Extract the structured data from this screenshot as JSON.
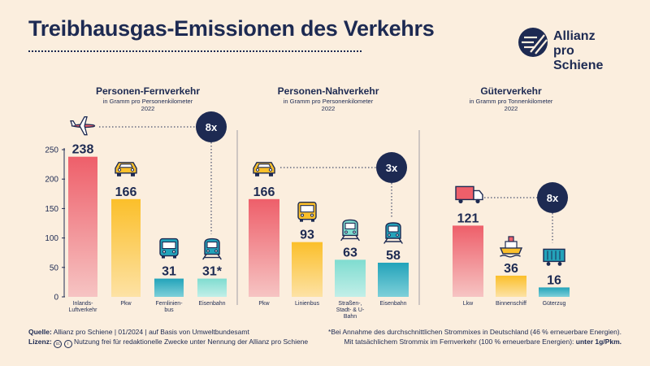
{
  "header": {
    "title": "Treibhausgas-Emissionen des Verkehrs",
    "logo_line1": "Allianz",
    "logo_line2": "pro Schiene"
  },
  "colors": {
    "background": "#fbeede",
    "navy": "#1d2a52",
    "red_top": "#ee5f6a",
    "red_bottom": "#f6c4c3",
    "yellow_top": "#fbbf2a",
    "yellow_bottom": "#fde2a5",
    "teal_top": "#23a3ba",
    "teal_bottom": "#7ed0d9",
    "mint_top": "#7fdcd0",
    "mint_bottom": "#c2efe8"
  },
  "chart_data": {
    "type": "bar",
    "ylim": [
      0,
      250
    ],
    "yticks": [
      "0",
      "50",
      "100",
      "150",
      "200",
      "250"
    ],
    "grid": false,
    "panels": [
      {
        "title": "Personen-Fernverkehr",
        "unit": "in Gramm pro Personenkilometer",
        "year": "2022",
        "factor_label": "8x",
        "bars": [
          {
            "category": "Inlands-Luftverkehr",
            "value": 238,
            "label": "238",
            "color": "red",
            "icon": "airplane-icon"
          },
          {
            "category": "Pkw",
            "value": 166,
            "label": "166",
            "color": "yellow",
            "icon": "car-icon"
          },
          {
            "category": "Fernlinien-bus",
            "value": 31,
            "label": "31",
            "color": "teal",
            "icon": "coach-bus-icon"
          },
          {
            "category": "Eisenbahn",
            "value": 31,
            "label": "31*",
            "color": "mint",
            "icon": "train-icon"
          }
        ]
      },
      {
        "title": "Personen-Nahverkehr",
        "unit": "in Gramm pro Personenkilometer",
        "year": "2022",
        "factor_label": "3x",
        "bars": [
          {
            "category": "Pkw",
            "value": 166,
            "label": "166",
            "color": "red",
            "icon": "car-icon"
          },
          {
            "category": "Linienbus",
            "value": 93,
            "label": "93",
            "color": "yellow",
            "icon": "bus-icon"
          },
          {
            "category": "Straßen-, Stadt- & U-Bahn",
            "value": 63,
            "label": "63",
            "color": "mint",
            "icon": "tram-icon"
          },
          {
            "category": "Eisenbahn",
            "value": 58,
            "label": "58",
            "color": "teal",
            "icon": "train-icon"
          }
        ]
      },
      {
        "title": "Güterverkehr",
        "unit": "in Gramm pro Tonnenkilometer",
        "year": "2022",
        "factor_label": "8x",
        "bars": [
          {
            "category": "Lkw",
            "value": 121,
            "label": "121",
            "color": "red",
            "icon": "truck-icon"
          },
          {
            "category": "Binnenschiff",
            "value": 36,
            "label": "36",
            "color": "yellow",
            "icon": "ship-icon"
          },
          {
            "category": "Güterzug",
            "value": 16,
            "label": "16",
            "color": "teal",
            "icon": "freight-wagon-icon"
          }
        ]
      }
    ]
  },
  "footer": {
    "source_label": "Quelle:",
    "source_text": "Allianz pro Schiene | 01/2024 | auf Basis von Umweltbundesamt",
    "license_label": "Lizenz:",
    "license_text": "Nutzung frei für redaktionelle Zwecke unter Nennung der Allianz pro Schiene",
    "note_line1": "*Bei Annahme des durchschnittlichen Strommixes in Deutschland (46 % erneuerbare Energien).",
    "note_line2": "Mit tatsächlichem Strommix im Fernverkehr (100 % erneuerbare Energien):",
    "note_line2_bold": "unter 1g/Pkm."
  }
}
